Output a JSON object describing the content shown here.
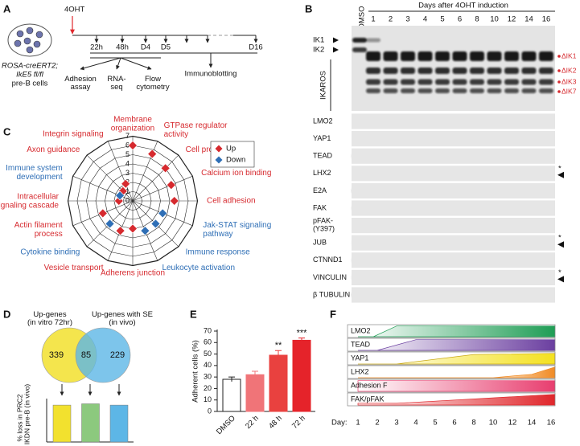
{
  "panel_a": {
    "label": "A",
    "treatment": "4OHT",
    "cells": [
      "ROSA-creERT2;",
      "IkE5 fl/fl",
      "pre-B cells"
    ],
    "timepoints": [
      "22h",
      "48h",
      "D4",
      "D5",
      "D16"
    ],
    "assays": [
      "Adhesion\nassay",
      "RNA-\nseq",
      "Flow\ncytometry",
      "Immunoblotting"
    ]
  },
  "panel_b": {
    "label": "B",
    "control": "DMSO",
    "header": "Days after 4OHT induction",
    "days": [
      1,
      2,
      3,
      4,
      5,
      6,
      8,
      10,
      12,
      14,
      16
    ],
    "ikaros": {
      "name": "IKAROS",
      "isoforms": [
        "IK1",
        "IK2"
      ],
      "truncated": [
        "ΔIK1",
        "ΔIK2",
        "ΔIK3",
        "ΔIK7"
      ]
    },
    "rows": [
      {
        "name": "LMO2"
      },
      {
        "name": "YAP1"
      },
      {
        "name": "TEAD"
      },
      {
        "name": "LHX2",
        "marker": "*"
      },
      {
        "name": "E2A"
      },
      {
        "name": "FAK"
      },
      {
        "name": "pFAK-\n(Y397)"
      },
      {
        "name": "JUB",
        "marker": "*"
      },
      {
        "name": "CTNND1"
      },
      {
        "name": "VINCULIN",
        "marker": "*"
      },
      {
        "name": "β TUBULIN"
      }
    ]
  },
  "panel_d": {
    "label": "D",
    "sets": [
      "Up-genes\n(in vitro 72hr)",
      "Up-genes with SE\n(in vivo)"
    ],
    "counts": [
      339,
      85,
      229
    ]
  },
  "panel_f": {
    "label": "F",
    "rows": [
      "LMO2",
      "TEAD",
      "YAP1",
      "LHX2",
      "Adhesion F",
      "FAK/pFAK"
    ],
    "axis_label": "Day:",
    "days": [
      1,
      2,
      3,
      4,
      5,
      6,
      8,
      10,
      12,
      14,
      16
    ]
  },
  "chart_data": [
    {
      "type": "radar",
      "label": "C",
      "categories": [
        "Membrane\norganization",
        "GTPase regulator\nactivity",
        "Cell projection",
        "Calcium ion binding",
        "Cell adhesion",
        "Jak-STAT signaling\npathway",
        "Immune response",
        "Leukocyte activation",
        "Adherens junction",
        "Vesicle transport",
        "Cytokine binding",
        "Actin filament\nprocess",
        "Intracellular\nsignaling cascade",
        "Immune system\ndevelopment",
        "Axon guidance",
        "Integrin signaling"
      ],
      "series": [
        {
          "name": "Up",
          "color": "#d62a2f",
          "values": [
            6,
            5.5,
            5,
            4.5,
            4.5,
            null,
            null,
            null,
            3,
            3.5,
            null,
            3.5,
            1.5,
            null,
            1.5,
            2
          ]
        },
        {
          "name": "Down",
          "color": "#2f6fb6",
          "values": [
            null,
            null,
            null,
            null,
            null,
            3.5,
            3.5,
            3.5,
            null,
            null,
            3.5,
            null,
            null,
            1.5,
            null,
            null
          ]
        }
      ],
      "rlim": [
        0,
        7
      ],
      "rticks": [
        0,
        1,
        2,
        3,
        4,
        5,
        6,
        7
      ],
      "legend": "upper right"
    },
    {
      "type": "bar",
      "label_y": "% loss in PRC2\nin IKDN pre-B (in vivo)",
      "values": [
        85,
        88,
        85
      ],
      "colors": [
        "#f2e12e",
        "#8cc97e",
        "#5db6e6"
      ],
      "ylim": [
        0,
        100
      ]
    },
    {
      "type": "bar",
      "label": "E",
      "ylabel": "Adherent cells (%)",
      "categories": [
        "DMSO",
        "22 h",
        "48 h",
        "72 h"
      ],
      "values": [
        28,
        32,
        49,
        62
      ],
      "errors": [
        2,
        3,
        4,
        2
      ],
      "colors": [
        "#ffffff",
        "#f07478",
        "#e9413f",
        "#e5232a"
      ],
      "significance": [
        null,
        null,
        "**",
        "***"
      ],
      "ylim": [
        0,
        70
      ],
      "yticks": [
        0,
        10,
        20,
        30,
        40,
        50,
        60,
        70
      ]
    }
  ]
}
